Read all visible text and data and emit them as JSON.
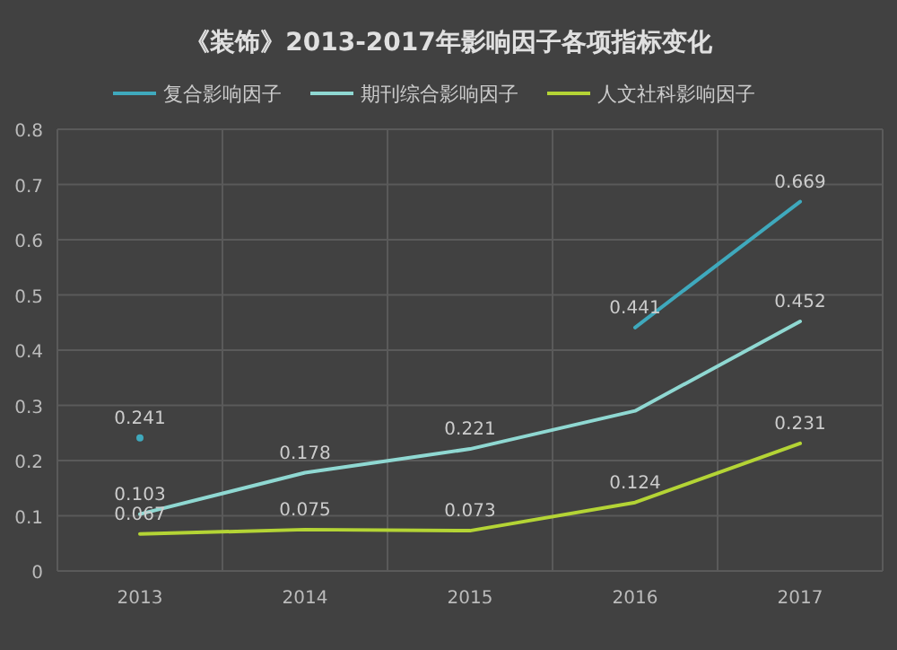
{
  "chart_data": {
    "type": "line",
    "title": "《装饰》2013-2017年影响因子各项指标变化",
    "categories": [
      "2013",
      "2014",
      "2015",
      "2016",
      "2017"
    ],
    "series": [
      {
        "name": "复合影响因子",
        "color": "#3fa9bd",
        "values": [
          0.241,
          null,
          null,
          0.441,
          0.669
        ],
        "value_labels": [
          "0.241",
          null,
          null,
          "0.441",
          "0.669"
        ]
      },
      {
        "name": "期刊综合影响因子",
        "color": "#8fd8d2",
        "values": [
          0.103,
          0.178,
          0.221,
          0.29,
          0.452
        ],
        "value_labels": [
          "0.103",
          "0.178",
          "0.221",
          null,
          "0.452"
        ]
      },
      {
        "name": "人文社科影响因子",
        "color": "#b4d435",
        "values": [
          0.067,
          0.075,
          0.073,
          0.124,
          0.231
        ],
        "value_labels": [
          "0.067",
          "0.075",
          "0.073",
          "0.124",
          "0.231"
        ]
      }
    ],
    "ylim": [
      0,
      0.8
    ],
    "yticks": [
      0,
      0.1,
      0.2,
      0.3,
      0.4,
      0.5,
      0.6,
      0.7,
      0.8
    ],
    "grid": true,
    "legend": "top",
    "marker": "none"
  }
}
